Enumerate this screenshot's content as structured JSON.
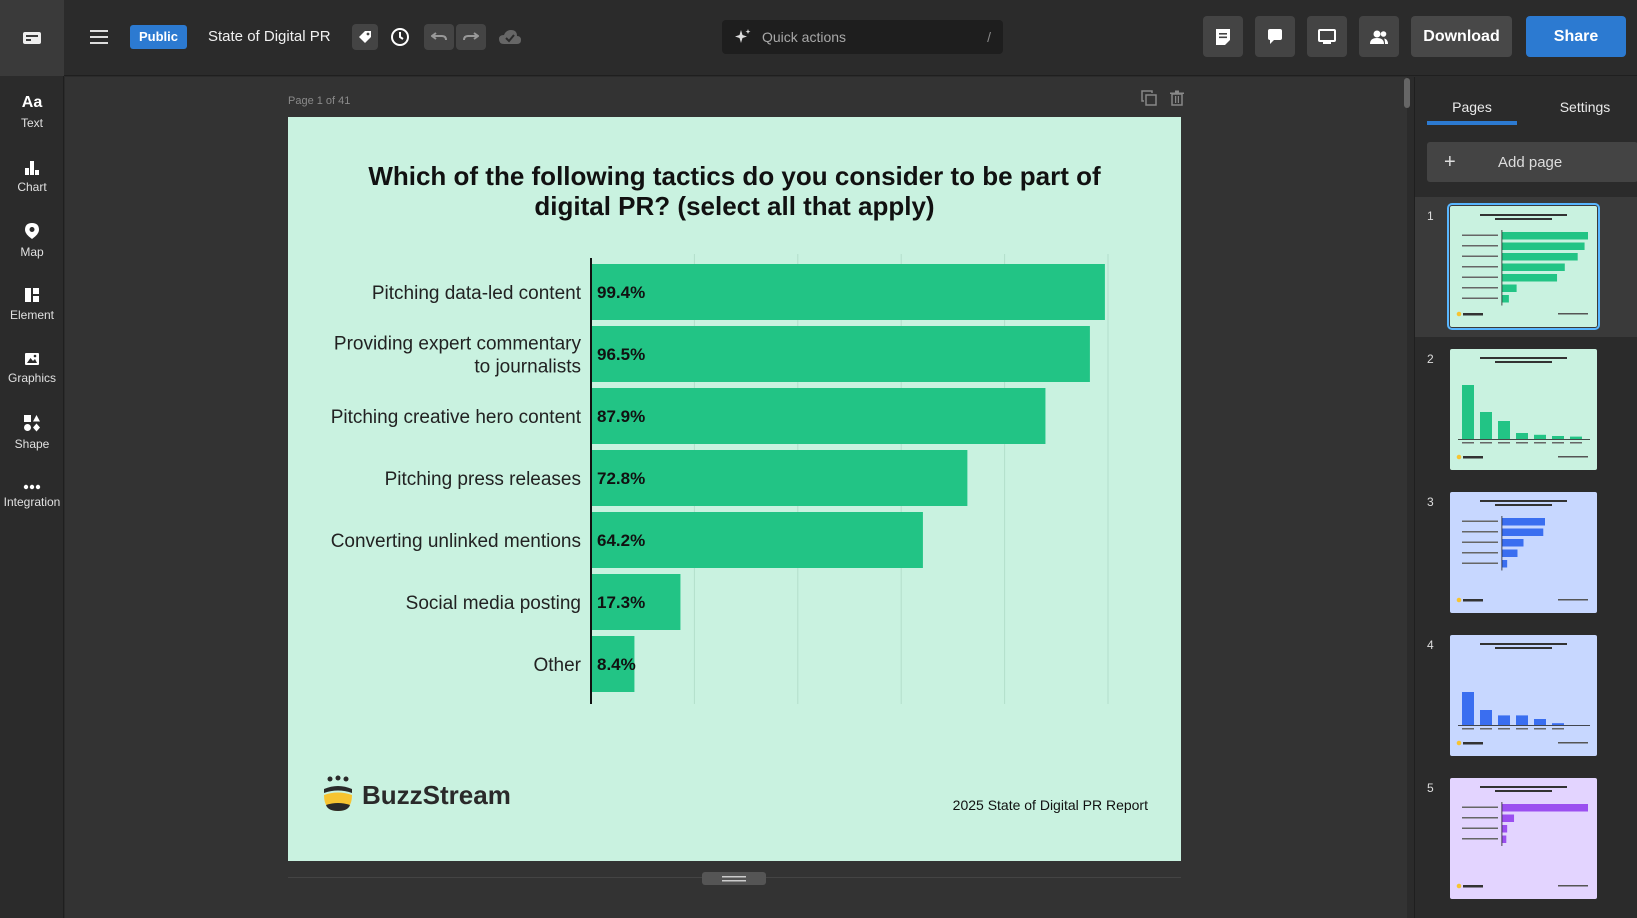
{
  "header": {
    "visibility_badge": "Public",
    "doc_title": "State of Digital PR",
    "quick_actions_placeholder": "Quick actions",
    "quick_actions_shortcut": "/",
    "download_label": "Download",
    "share_label": "Share"
  },
  "sidebar": {
    "items": [
      {
        "label": "Text",
        "icon": "text-icon"
      },
      {
        "label": "Chart",
        "icon": "chart-icon"
      },
      {
        "label": "Map",
        "icon": "map-icon"
      },
      {
        "label": "Element",
        "icon": "element-icon"
      },
      {
        "label": "Graphics",
        "icon": "graphics-icon"
      },
      {
        "label": "Shape",
        "icon": "shape-icon"
      },
      {
        "label": "Integration",
        "icon": "integration-icon"
      }
    ]
  },
  "canvas": {
    "page_label": "Page 1 of 41"
  },
  "slide": {
    "title": "Which of the following tactics do you consider to be part of digital PR? (select all that apply)",
    "brand": "BuzzStream",
    "report": "2025 State of Digital PR Report",
    "background": "#c9f2e0",
    "bar_color": "#22c485"
  },
  "chart_data": {
    "type": "bar",
    "orientation": "horizontal",
    "categories": [
      "Pitching data-led content",
      "Providing expert commentary to journalists",
      "Pitching creative hero content",
      "Pitching press releases",
      "Converting unlinked mentions",
      "Social media posting",
      "Other"
    ],
    "category_lines": [
      [
        "Pitching data-led content"
      ],
      [
        "Providing expert commentary",
        "to journalists"
      ],
      [
        "Pitching creative hero content"
      ],
      [
        "Pitching press releases"
      ],
      [
        "Converting unlinked mentions"
      ],
      [
        "Social media posting"
      ],
      [
        "Other"
      ]
    ],
    "values": [
      99.4,
      96.5,
      87.9,
      72.8,
      64.2,
      17.3,
      8.4
    ],
    "value_labels": [
      "99.4%",
      "96.5%",
      "87.9%",
      "72.8%",
      "64.2%",
      "17.3%",
      "8.4%"
    ],
    "xlim": [
      0,
      100
    ],
    "grid": true,
    "title": "Which of the following tactics do you consider to be part of digital PR? (select all that apply)"
  },
  "right_panel": {
    "tabs": [
      "Pages",
      "Settings"
    ],
    "add_page_label": "Add page",
    "pages": [
      {
        "num": "1",
        "bg": "#c9f2e0",
        "accent": "#22c485",
        "kind": "hbar",
        "selected": true
      },
      {
        "num": "2",
        "bg": "#c9f2e0",
        "accent": "#22c485",
        "kind": "vbar",
        "selected": false
      },
      {
        "num": "3",
        "bg": "#c7d7ff",
        "accent": "#3a6ef0",
        "kind": "hbar-small",
        "selected": false
      },
      {
        "num": "4",
        "bg": "#c7d7ff",
        "accent": "#3a6ef0",
        "kind": "vbar-small",
        "selected": false
      },
      {
        "num": "5",
        "bg": "#e3d4ff",
        "accent": "#9b4ff0",
        "kind": "hbar-purple",
        "selected": false
      }
    ]
  }
}
